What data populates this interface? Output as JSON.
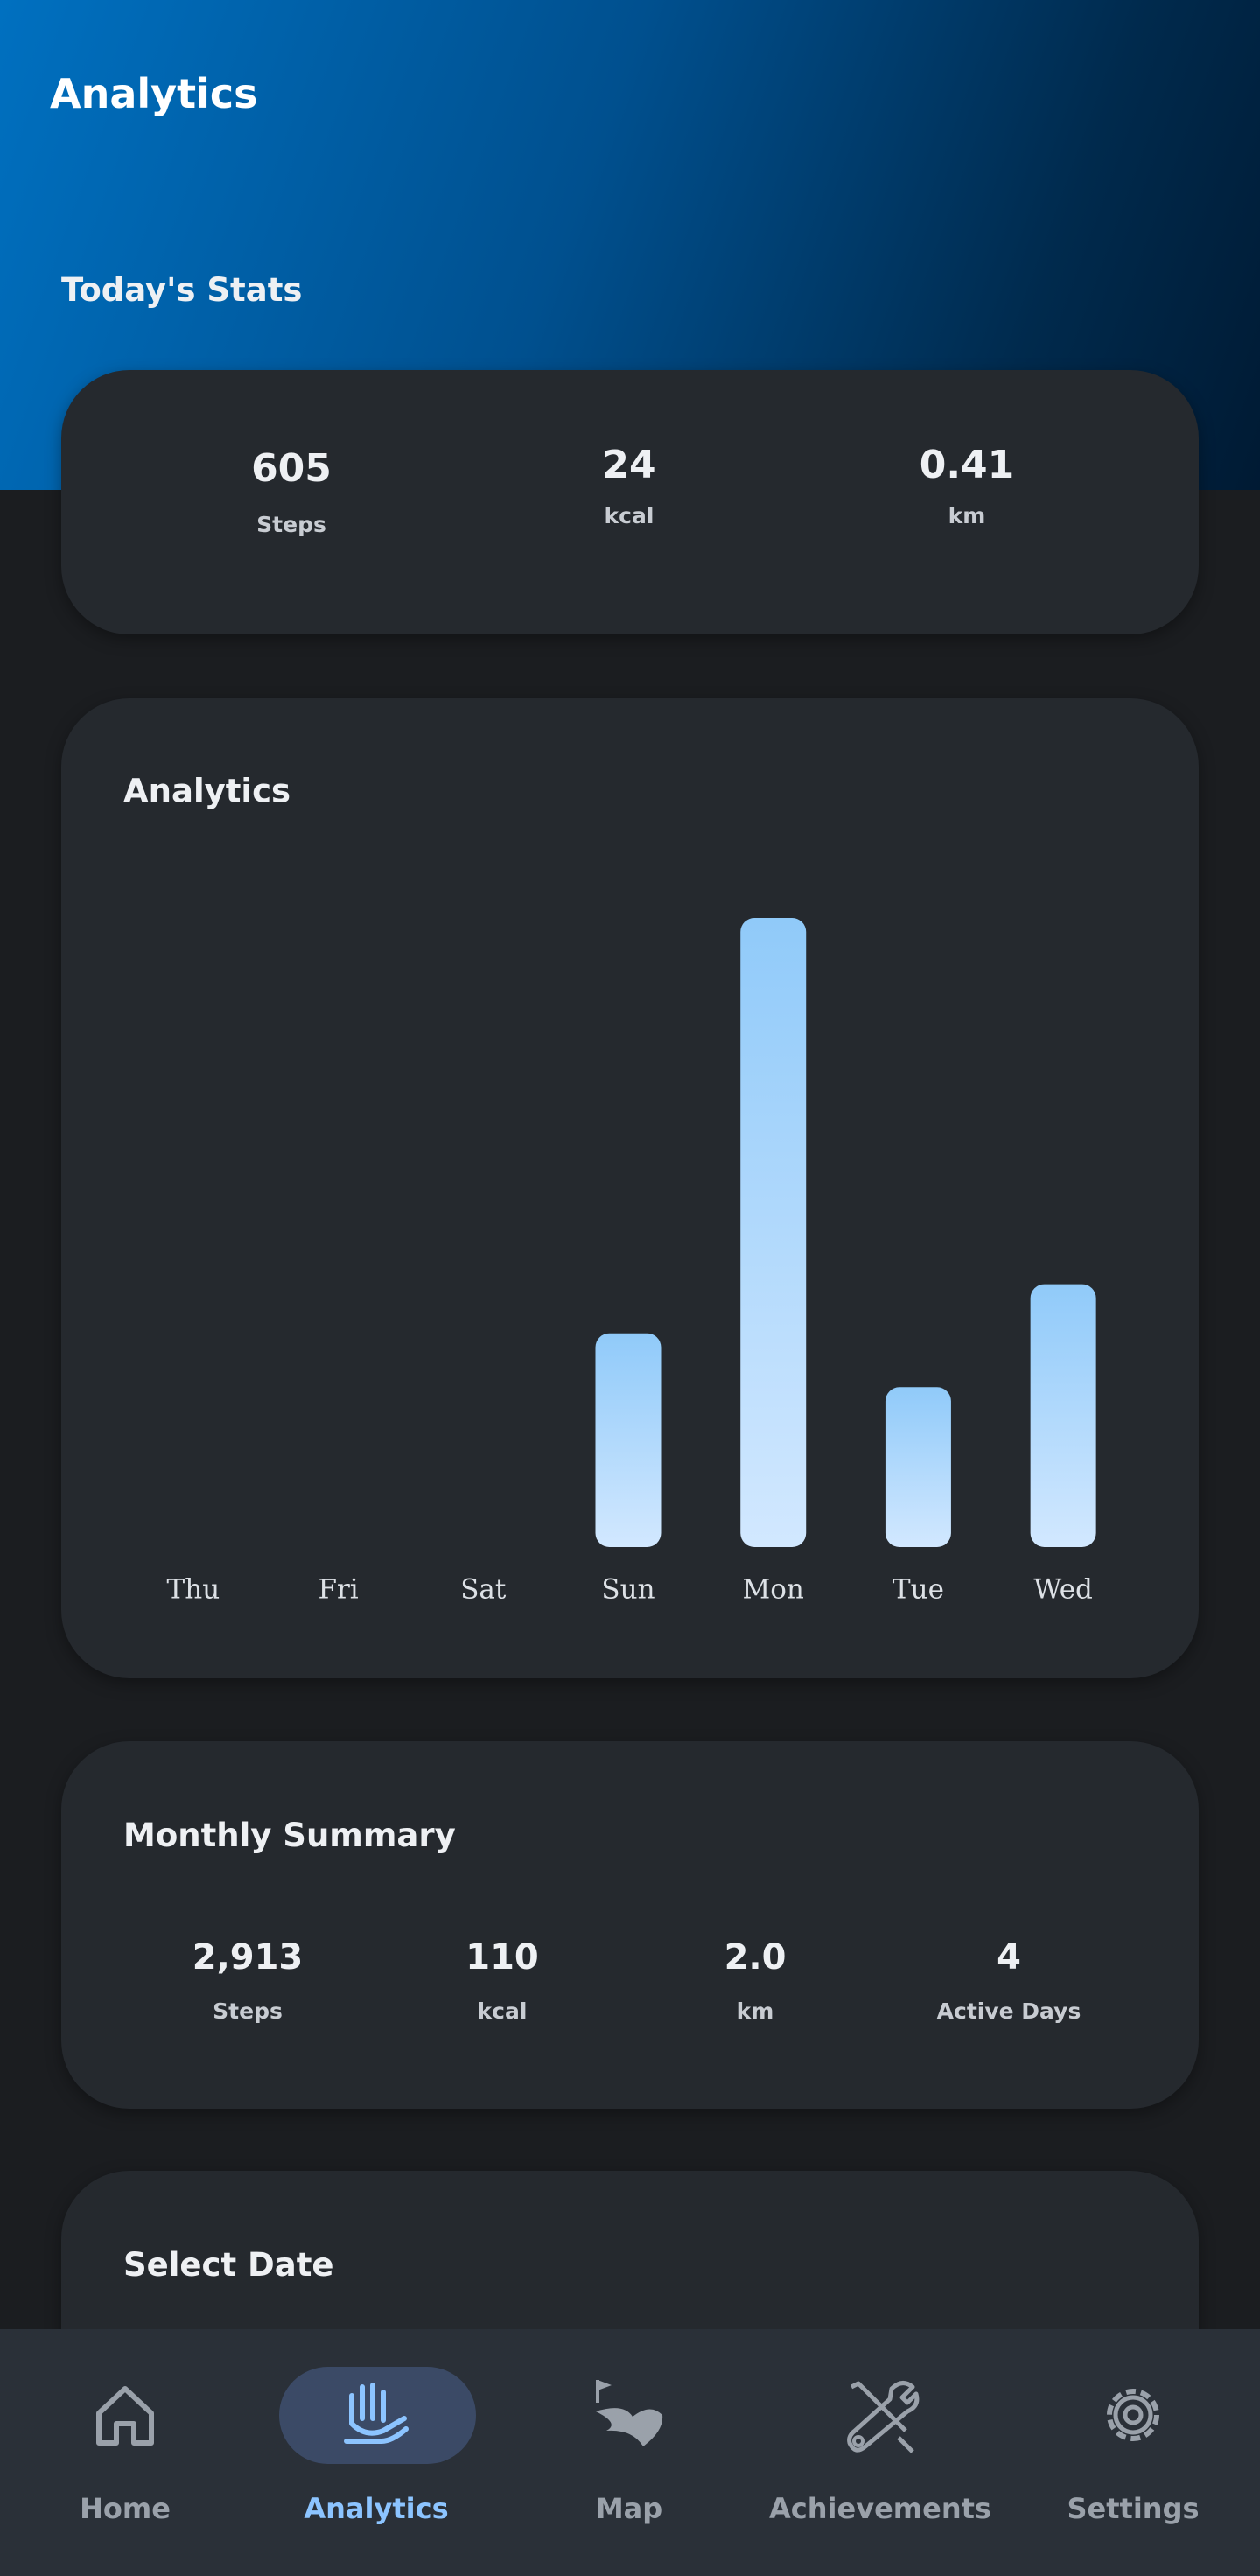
{
  "header": {
    "title": "Analytics"
  },
  "today": {
    "title": "Today's Stats",
    "stats": [
      {
        "value": "605",
        "label": "Steps"
      },
      {
        "value": "24",
        "label": "kcal"
      },
      {
        "value": "0.41",
        "label": "km"
      }
    ]
  },
  "chart_data": {
    "type": "bar",
    "title": "Analytics",
    "categories": [
      "Thu",
      "Fri",
      "Sat",
      "Sun",
      "Mon",
      "Tue",
      "Wed"
    ],
    "values": [
      0,
      0,
      0,
      492,
      1448,
      368,
      605
    ],
    "color": "#90caf9"
  },
  "monthly": {
    "title": "Monthly Summary",
    "stats": [
      {
        "value": "2,913",
        "label": "Steps"
      },
      {
        "value": "110",
        "label": "kcal"
      },
      {
        "value": "2.0",
        "label": "km"
      },
      {
        "value": "4",
        "label": "Active Days"
      }
    ]
  },
  "select_date": {
    "title": "Select Date"
  },
  "nav": {
    "items": [
      "Home",
      "Analytics",
      "Map",
      "Achievements",
      "Settings"
    ]
  }
}
